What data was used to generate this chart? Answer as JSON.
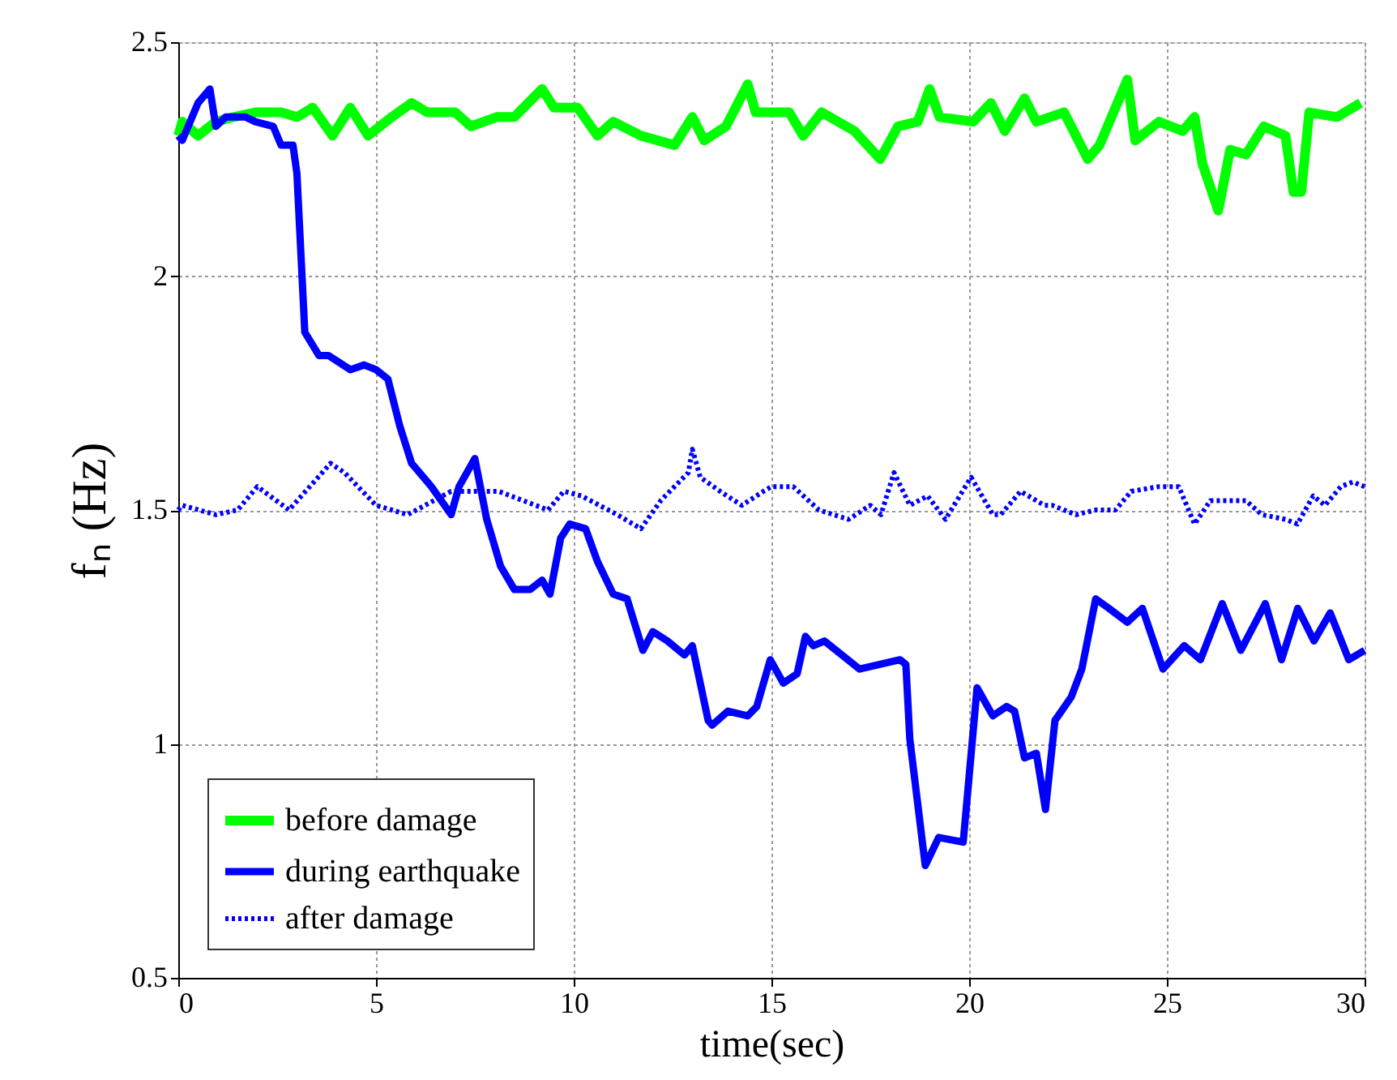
{
  "chart_data": {
    "type": "line",
    "xlabel": "time(sec)",
    "ylabel": "fₙ (Hz)",
    "xlim": [
      0,
      30
    ],
    "ylim": [
      0.5,
      2.5
    ],
    "xticks": [
      0,
      5,
      10,
      15,
      20,
      25,
      30
    ],
    "yticks": [
      0.5,
      1,
      1.5,
      2,
      2.5
    ],
    "grid": true,
    "legend": "bottom left",
    "series": [
      {
        "name": "before damage",
        "color": "#00ff00",
        "line_style": "solid",
        "x": [
          0,
          0.1,
          0.5,
          0.95,
          1.4,
          1.95,
          2.6,
          3.0,
          3.4,
          3.9,
          4.35,
          4.8,
          5.4,
          5.9,
          6.3,
          7.0,
          7.4,
          8.05,
          8.5,
          9.2,
          9.5,
          10.1,
          10.6,
          11.0,
          11.7,
          12.55,
          13.0,
          13.3,
          13.85,
          14.4,
          14.6,
          15.45,
          15.8,
          16.27,
          17.1,
          17.75,
          18.2,
          18.7,
          19.0,
          19.25,
          20.1,
          20.55,
          20.9,
          21.4,
          21.7,
          22.4,
          23.0,
          23.3,
          24.0,
          24.2,
          24.8,
          25.4,
          25.7,
          25.9,
          26.3,
          26.6,
          27.0,
          27.45,
          28.0,
          28.2,
          28.4,
          28.6,
          29.3,
          29.9
        ],
        "values": [
          2.3,
          2.33,
          2.3,
          2.33,
          2.34,
          2.35,
          2.35,
          2.34,
          2.36,
          2.3,
          2.36,
          2.3,
          2.34,
          2.37,
          2.35,
          2.35,
          2.32,
          2.34,
          2.34,
          2.4,
          2.36,
          2.36,
          2.3,
          2.33,
          2.3,
          2.28,
          2.34,
          2.29,
          2.32,
          2.41,
          2.35,
          2.35,
          2.3,
          2.35,
          2.31,
          2.25,
          2.32,
          2.33,
          2.4,
          2.34,
          2.33,
          2.37,
          2.31,
          2.38,
          2.33,
          2.35,
          2.25,
          2.28,
          2.42,
          2.29,
          2.33,
          2.31,
          2.34,
          2.24,
          2.14,
          2.27,
          2.26,
          2.32,
          2.3,
          2.18,
          2.18,
          2.35,
          2.34,
          2.37
        ]
      },
      {
        "name": "during earthquake",
        "color": "#0000ff",
        "line_style": "solid",
        "x": [
          0,
          0.1,
          0.5,
          0.8,
          0.95,
          1.2,
          1.7,
          1.95,
          2.4,
          2.6,
          2.9,
          3.0,
          3.2,
          3.56,
          3.8,
          4.35,
          4.7,
          5.0,
          5.3,
          5.6,
          5.9,
          6.4,
          6.9,
          7.1,
          7.5,
          7.8,
          8.15,
          8.5,
          8.9,
          9.2,
          9.4,
          9.67,
          9.9,
          10.3,
          10.6,
          11.0,
          11.35,
          11.75,
          12.0,
          12.37,
          12.8,
          13.0,
          13.4,
          13.5,
          13.9,
          14.4,
          14.63,
          14.97,
          15.3,
          15.65,
          15.86,
          16.06,
          16.34,
          17.23,
          18.25,
          18.4,
          18.5,
          18.89,
          19.23,
          19.85,
          20.2,
          20.6,
          20.95,
          21.15,
          21.4,
          21.7,
          21.93,
          22.17,
          22.58,
          22.85,
          23.2,
          23.53,
          24.0,
          24.38,
          24.9,
          25.44,
          25.85,
          26.4,
          26.87,
          27.49,
          27.9,
          28.31,
          28.72,
          29.13,
          29.6,
          30.0
        ],
        "values": [
          2.3,
          2.29,
          2.37,
          2.4,
          2.32,
          2.34,
          2.34,
          2.33,
          2.32,
          2.28,
          2.28,
          2.22,
          1.88,
          1.83,
          1.83,
          1.8,
          1.81,
          1.8,
          1.78,
          1.68,
          1.6,
          1.55,
          1.49,
          1.55,
          1.61,
          1.48,
          1.38,
          1.33,
          1.33,
          1.35,
          1.32,
          1.44,
          1.47,
          1.46,
          1.39,
          1.32,
          1.31,
          1.2,
          1.24,
          1.22,
          1.19,
          1.21,
          1.05,
          1.04,
          1.07,
          1.06,
          1.08,
          1.18,
          1.13,
          1.15,
          1.23,
          1.21,
          1.22,
          1.16,
          1.18,
          1.17,
          1.01,
          0.74,
          0.8,
          0.79,
          1.12,
          1.06,
          1.08,
          1.07,
          0.97,
          0.98,
          0.86,
          1.05,
          1.1,
          1.16,
          1.31,
          1.29,
          1.26,
          1.29,
          1.16,
          1.21,
          1.18,
          1.3,
          1.2,
          1.3,
          1.18,
          1.29,
          1.22,
          1.28,
          1.18,
          1.2
        ]
      },
      {
        "name": "after damage",
        "color": "#0000ff",
        "line_style": "dotted",
        "x": [
          0,
          0.1,
          0.95,
          1.5,
          2.0,
          2.8,
          3.85,
          4.2,
          5.0,
          5.8,
          6.9,
          8.1,
          9.35,
          9.75,
          10.2,
          11.1,
          11.7,
          12.2,
          12.9,
          13.0,
          13.2,
          13.7,
          14.25,
          14.8,
          15.0,
          15.55,
          16.2,
          16.95,
          17.5,
          17.77,
          18.1,
          18.5,
          18.95,
          19.4,
          20.05,
          20.6,
          20.8,
          21.3,
          21.9,
          22.1,
          22.7,
          23.2,
          23.7,
          24.1,
          24.8,
          25.3,
          25.7,
          26.1,
          26.5,
          27.0,
          27.4,
          28.0,
          28.3,
          28.7,
          29.0,
          29.4,
          29.7,
          30.0
        ],
        "values": [
          1.5,
          1.51,
          1.49,
          1.5,
          1.55,
          1.5,
          1.6,
          1.58,
          1.51,
          1.49,
          1.54,
          1.54,
          1.5,
          1.54,
          1.53,
          1.49,
          1.46,
          1.52,
          1.58,
          1.63,
          1.57,
          1.54,
          1.51,
          1.54,
          1.55,
          1.55,
          1.5,
          1.48,
          1.51,
          1.49,
          1.58,
          1.51,
          1.53,
          1.48,
          1.57,
          1.49,
          1.49,
          1.54,
          1.51,
          1.51,
          1.49,
          1.5,
          1.5,
          1.54,
          1.55,
          1.55,
          1.47,
          1.52,
          1.52,
          1.52,
          1.49,
          1.48,
          1.47,
          1.53,
          1.51,
          1.55,
          1.56,
          1.55
        ]
      }
    ]
  }
}
